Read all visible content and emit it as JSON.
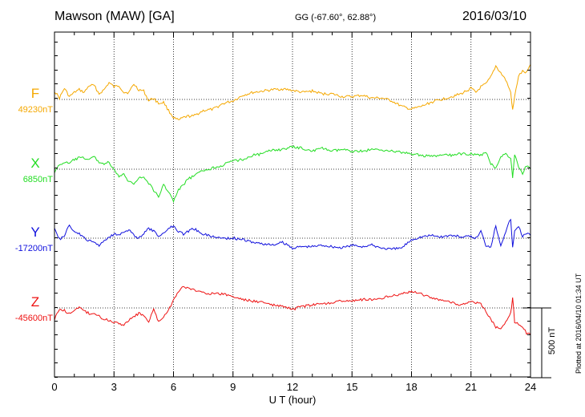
{
  "header": {
    "station": "Mawson (MAW)  [GA]",
    "coords": "GG (-67.60°,  62.88°)",
    "date": "2016/03/10"
  },
  "scale_label": "500 nT",
  "plotted_text": "Plotted at 2016/04/10 01:34 UT",
  "chart_data": {
    "type": "line",
    "xlabel": "U T (hour)",
    "xlim": [
      0,
      24
    ],
    "xticks": [
      0,
      3,
      6,
      9,
      12,
      15,
      18,
      21,
      24
    ],
    "grid": true,
    "scale_bar_nT": 500,
    "series": [
      {
        "name": "F",
        "baseline_label": "49230nT",
        "baseline_nT": 49230,
        "color": "#f5a800",
        "x": [
          0,
          0.25,
          0.5,
          0.75,
          1,
          1.25,
          1.5,
          1.75,
          2,
          2.25,
          2.5,
          2.75,
          3,
          3.25,
          3.5,
          3.75,
          4,
          4.25,
          4.5,
          4.75,
          5,
          5.25,
          5.5,
          5.75,
          6,
          6.25,
          6.5,
          6.75,
          7,
          7.5,
          8,
          8.5,
          9,
          9.5,
          10,
          10.5,
          11,
          11.5,
          12,
          12.5,
          13,
          13.5,
          14,
          14.5,
          15,
          15.5,
          16,
          16.5,
          17,
          17.5,
          18,
          18.5,
          19,
          19.5,
          20,
          20.5,
          21,
          21.25,
          21.5,
          21.75,
          22,
          22.25,
          22.5,
          22.75,
          23,
          23.1,
          23.2,
          23.4,
          23.6,
          23.8,
          24
        ],
        "y": [
          49290,
          49240,
          49310,
          49250,
          49280,
          49300,
          49280,
          49330,
          49330,
          49270,
          49300,
          49350,
          49320,
          49330,
          49280,
          49280,
          49340,
          49300,
          49290,
          49220,
          49240,
          49200,
          49210,
          49150,
          49100,
          49080,
          49100,
          49110,
          49110,
          49150,
          49160,
          49200,
          49220,
          49260,
          49280,
          49290,
          49300,
          49305,
          49295,
          49280,
          49290,
          49270,
          49270,
          49250,
          49250,
          49260,
          49240,
          49240,
          49220,
          49180,
          49160,
          49180,
          49210,
          49230,
          49250,
          49270,
          49310,
          49280,
          49320,
          49340,
          49390,
          49470,
          49420,
          49370,
          49280,
          49150,
          49250,
          49400,
          49430,
          49420,
          49480
        ]
      },
      {
        "name": "X",
        "baseline_label": "6850nT",
        "baseline_nT": 6850,
        "color": "#22dd22",
        "x": [
          0,
          0.25,
          0.5,
          0.75,
          1,
          1.25,
          1.5,
          1.75,
          2,
          2.25,
          2.5,
          2.75,
          3,
          3.25,
          3.5,
          3.75,
          4,
          4.25,
          4.5,
          4.75,
          5,
          5.25,
          5.5,
          5.75,
          6,
          6.25,
          6.5,
          6.75,
          7,
          7.5,
          8,
          8.5,
          9,
          9.5,
          10,
          10.5,
          11,
          11.5,
          12,
          12.5,
          13,
          13.5,
          14,
          14.5,
          15,
          15.5,
          16,
          16.5,
          17,
          17.5,
          18,
          18.5,
          19,
          19.5,
          20,
          20.5,
          21,
          21.25,
          21.5,
          21.75,
          22,
          22.25,
          22.5,
          22.75,
          23,
          23.1,
          23.2,
          23.4,
          23.6,
          23.8,
          24
        ],
        "y": [
          6830,
          6880,
          6900,
          6890,
          6920,
          6930,
          6930,
          6920,
          6940,
          6900,
          6890,
          6900,
          6840,
          6800,
          6810,
          6760,
          6750,
          6790,
          6790,
          6750,
          6700,
          6650,
          6740,
          6690,
          6620,
          6700,
          6740,
          6780,
          6800,
          6840,
          6860,
          6880,
          6910,
          6920,
          6950,
          6960,
          6990,
          6990,
          7010,
          7000,
          6980,
          7000,
          6980,
          6990,
          6980,
          6980,
          6990,
          6990,
          6980,
          6970,
          6960,
          6950,
          6940,
          6950,
          6950,
          6960,
          6960,
          6950,
          6950,
          6970,
          6890,
          6860,
          6940,
          6960,
          6930,
          6790,
          6960,
          6860,
          6820,
          6880,
          6850
        ]
      },
      {
        "name": "Y",
        "baseline_label": "-17200nT",
        "baseline_nT": -17200,
        "color": "#1010dd",
        "x": [
          0,
          0.25,
          0.5,
          0.75,
          1,
          1.25,
          1.5,
          1.75,
          2,
          2.25,
          2.5,
          2.75,
          3,
          3.25,
          3.5,
          3.75,
          4,
          4.25,
          4.5,
          4.75,
          5,
          5.25,
          5.5,
          5.75,
          6,
          6.25,
          6.5,
          6.75,
          7,
          7.5,
          8,
          8.5,
          9,
          9.5,
          10,
          10.5,
          11,
          11.5,
          12,
          12.5,
          13,
          13.5,
          14,
          14.5,
          15,
          15.5,
          16,
          16.5,
          17,
          17.5,
          18,
          18.5,
          19,
          19.5,
          20,
          20.5,
          21,
          21.25,
          21.5,
          21.75,
          22,
          22.25,
          22.5,
          22.75,
          23,
          23.1,
          23.2,
          23.4,
          23.6,
          23.8,
          24
        ],
        "y": [
          -17120,
          -17210,
          -17180,
          -17110,
          -17150,
          -17170,
          -17200,
          -17220,
          -17230,
          -17250,
          -17220,
          -17190,
          -17170,
          -17170,
          -17160,
          -17140,
          -17180,
          -17200,
          -17170,
          -17130,
          -17150,
          -17190,
          -17160,
          -17130,
          -17110,
          -17150,
          -17170,
          -17150,
          -17130,
          -17170,
          -17190,
          -17200,
          -17200,
          -17210,
          -17230,
          -17240,
          -17250,
          -17230,
          -17270,
          -17260,
          -17260,
          -17250,
          -17260,
          -17270,
          -17250,
          -17260,
          -17250,
          -17270,
          -17280,
          -17270,
          -17210,
          -17190,
          -17180,
          -17190,
          -17180,
          -17190,
          -17190,
          -17200,
          -17150,
          -17250,
          -17260,
          -17110,
          -17250,
          -17150,
          -17060,
          -17270,
          -17150,
          -17110,
          -17190,
          -17160,
          -17180
        ]
      },
      {
        "name": "Z",
        "baseline_label": "-45600nT",
        "baseline_nT": -45600,
        "color": "#ee1111",
        "x": [
          0,
          0.25,
          0.5,
          0.75,
          1,
          1.25,
          1.5,
          1.75,
          2,
          2.25,
          2.5,
          2.75,
          3,
          3.25,
          3.5,
          3.75,
          4,
          4.25,
          4.5,
          4.75,
          5,
          5.25,
          5.5,
          5.75,
          6,
          6.25,
          6.5,
          6.75,
          7,
          7.5,
          8,
          8.5,
          9,
          9.5,
          10,
          10.5,
          11,
          11.5,
          12,
          12.5,
          13,
          13.5,
          14,
          14.5,
          15,
          15.5,
          16,
          16.5,
          17,
          17.5,
          18,
          18.5,
          19,
          19.5,
          20,
          20.5,
          21,
          21.25,
          21.5,
          21.75,
          22,
          22.25,
          22.5,
          22.75,
          23,
          23.1,
          23.2,
          23.4,
          23.6,
          23.8,
          24
        ],
        "y": [
          -45680,
          -45610,
          -45620,
          -45640,
          -45620,
          -45600,
          -45620,
          -45640,
          -45640,
          -45660,
          -45680,
          -45690,
          -45700,
          -45710,
          -45720,
          -45690,
          -45660,
          -45640,
          -45650,
          -45700,
          -45610,
          -45700,
          -45660,
          -45620,
          -45540,
          -45480,
          -45450,
          -45460,
          -45470,
          -45490,
          -45500,
          -45500,
          -45520,
          -45540,
          -45550,
          -45560,
          -45580,
          -45590,
          -45610,
          -45590,
          -45580,
          -45570,
          -45560,
          -45550,
          -45550,
          -45540,
          -45540,
          -45530,
          -45510,
          -45500,
          -45480,
          -45500,
          -45530,
          -45540,
          -45560,
          -45580,
          -45560,
          -45560,
          -45570,
          -45630,
          -45680,
          -45740,
          -45740,
          -45700,
          -45640,
          -45520,
          -45700,
          -45720,
          -45740,
          -45780,
          -45790
        ]
      }
    ]
  }
}
